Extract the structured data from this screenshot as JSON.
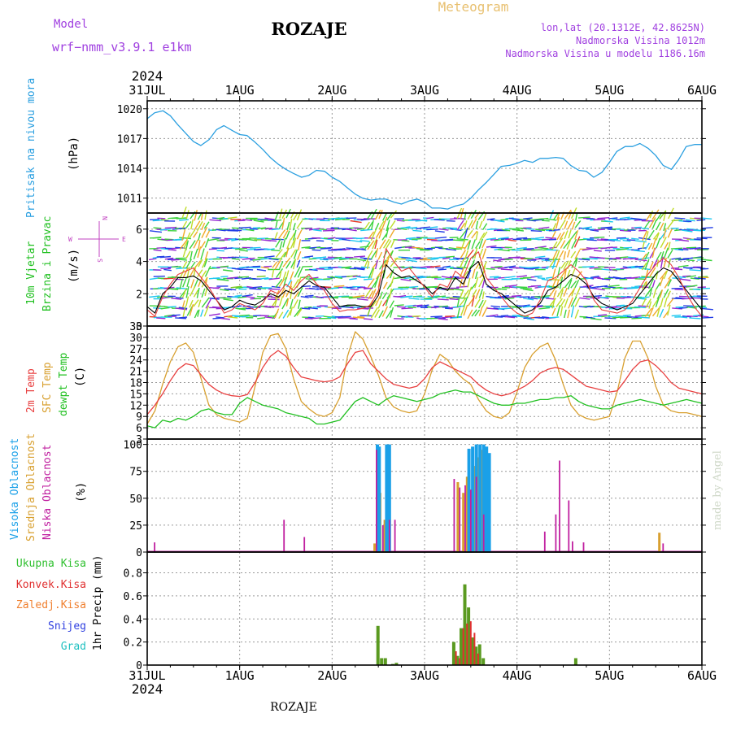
{
  "header": {
    "station": "ROZAJE",
    "model_label": "Model",
    "model_name": "wrf−nmm_v3.9.1  e1km",
    "product": "Meteogram",
    "lonlat": "lon,lat (20.1312E, 42.8625N)",
    "elevation": "Nadmorska Visina 1012m",
    "model_elevation": "Nadmorska Visina u modelu 1186.16m",
    "year_top": "2024",
    "year_bottom": "2024",
    "footer_station": "ROZAJE",
    "credit": "made by Angel"
  },
  "colors": {
    "pressure": "#2a9fe0",
    "wind_title": "#20c020",
    "temp2m": "#e84040",
    "sfc": "#d8a030",
    "dewpt": "#20c020",
    "cloud_high": "#1aa0e8",
    "cloud_mid": "#d8a030",
    "cloud_low": "#c020a0",
    "precip_total": "#5a9a20",
    "precip_conv": "#e03030",
    "precip_frozen": "#f08030",
    "snow": "#3040e0",
    "hail": "#20c0c0",
    "model_label": "#a040e0",
    "meta": "#a040e0",
    "meteogram": "#e8c070"
  },
  "chart_data": [
    {
      "type": "line",
      "panel": "pressure",
      "title": "Pritisak na nivou mora",
      "ylabel": "(hPa)",
      "ylim": [
        1009.5,
        1020.8
      ],
      "yticks": [
        "1011",
        "1014",
        "1017",
        "1020"
      ],
      "x_days": [
        "31JUL",
        "1AUG",
        "2AUG",
        "3AUG",
        "4AUG",
        "5AUG",
        "6AUG"
      ],
      "grid": true,
      "series": [
        {
          "x": [
            0,
            0.08,
            0.17,
            0.25,
            0.33,
            0.42,
            0.5,
            0.58,
            0.67,
            0.75,
            0.83,
            0.92,
            1.0,
            1.08,
            1.17,
            1.25,
            1.33,
            1.42,
            1.5,
            1.58,
            1.67,
            1.75,
            1.83,
            1.92,
            2.0,
            2.08,
            2.17,
            2.25,
            2.33,
            2.42,
            2.5,
            2.58,
            2.67,
            2.75,
            2.83,
            2.92,
            3.0,
            3.08,
            3.17,
            3.25,
            3.33,
            3.42,
            3.5,
            3.58,
            3.67,
            3.75,
            3.83,
            3.92,
            4.0,
            4.08,
            4.17,
            4.25,
            4.33,
            4.42,
            4.5,
            4.58,
            4.67,
            4.75,
            4.83,
            4.92,
            5.0,
            5.08,
            5.17,
            5.25,
            5.33,
            5.42,
            5.5,
            5.58,
            5.67,
            5.75,
            5.83,
            5.92,
            6.0
          ],
          "values": [
            1019.0,
            1019.6,
            1019.8,
            1019.3,
            1018.4,
            1017.5,
            1016.7,
            1016.3,
            1016.9,
            1017.9,
            1018.3,
            1017.8,
            1017.4,
            1017.3,
            1016.6,
            1015.9,
            1015.1,
            1014.4,
            1013.9,
            1013.5,
            1013.1,
            1013.3,
            1013.8,
            1013.7,
            1013.1,
            1012.7,
            1012.0,
            1011.4,
            1011.0,
            1010.8,
            1010.9,
            1010.9,
            1010.6,
            1010.4,
            1010.7,
            1010.9,
            1010.6,
            1010.0,
            1010.0,
            1009.9,
            1010.2,
            1010.4,
            1011.0,
            1011.8,
            1012.6,
            1013.4,
            1014.2,
            1014.3,
            1014.5,
            1014.8,
            1014.6,
            1015.0,
            1015.0,
            1015.1,
            1015.0,
            1014.3,
            1013.8,
            1013.7,
            1013.1,
            1013.6,
            1014.6,
            1015.7,
            1016.2,
            1016.2,
            1016.5,
            1016.0,
            1015.3,
            1014.3,
            1013.9,
            1014.9,
            1016.2,
            1016.4,
            1016.4
          ]
        }
      ]
    },
    {
      "type": "line",
      "panel": "wind",
      "title_line1": "10m Vjetar",
      "title_line2": "Brzina i Pravac",
      "ylabel": "(m/s)",
      "ylim": [
        0,
        7
      ],
      "yticks": [
        "0",
        "2",
        "4",
        "6"
      ],
      "compass": [
        "N",
        "E",
        "S",
        "W"
      ],
      "grid": true,
      "series": [
        {
          "values": [
            1.2,
            0.8,
            2.0,
            2.4,
            3.0,
            3.0,
            3.1,
            2.8,
            2.2,
            1.6,
            1.0,
            1.2,
            1.6,
            1.4,
            1.3,
            1.6,
            2.0,
            1.8,
            2.2,
            2.0,
            2.4,
            2.8,
            2.5,
            2.4,
            1.8,
            1.2,
            1.3,
            1.3,
            1.2,
            1.2,
            1.9,
            3.8,
            3.3,
            3.0,
            3.1,
            2.8,
            2.5,
            2.0,
            2.4,
            2.2,
            3.0,
            2.6,
            3.6,
            4.0,
            2.6,
            2.2,
            2.0,
            1.6,
            1.2,
            0.8,
            1.0,
            1.4,
            2.2,
            2.4,
            2.8,
            3.2,
            3.0,
            2.6,
            1.8,
            1.4,
            1.2,
            1.0,
            1.2,
            1.4,
            2.0,
            2.6,
            3.2,
            3.6,
            3.4,
            2.8,
            2.2,
            1.6,
            1.0
          ]
        },
        {
          "values": [
            1.0,
            0.6,
            1.8,
            2.6,
            3.2,
            3.4,
            3.6,
            3.0,
            2.4,
            1.6,
            0.8,
            1.0,
            1.4,
            1.2,
            1.0,
            1.4,
            2.2,
            2.0,
            2.6,
            2.2,
            2.8,
            3.2,
            2.6,
            2.2,
            1.4,
            0.9,
            1.0,
            1.0,
            1.1,
            1.3,
            2.2,
            4.8,
            4.0,
            3.4,
            3.6,
            3.0,
            2.4,
            1.8,
            2.6,
            2.4,
            3.4,
            3.0,
            4.2,
            4.6,
            3.0,
            2.4,
            1.8,
            1.2,
            0.8,
            0.6,
            0.8,
            1.6,
            2.8,
            3.0,
            3.4,
            3.8,
            3.4,
            2.8,
            1.6,
            1.0,
            0.9,
            0.8,
            1.0,
            1.6,
            2.4,
            3.2,
            3.8,
            4.2,
            3.8,
            3.0,
            2.0,
            1.2,
            0.6
          ]
        }
      ]
    },
    {
      "type": "line",
      "panel": "temperature",
      "title_lines": [
        "2m Temp",
        "SFC Temp",
        "dewpt Temp"
      ],
      "ylabel": "(C)",
      "ylim": [
        3,
        33
      ],
      "yticks": [
        "3",
        "6",
        "9",
        "12",
        "15",
        "18",
        "21",
        "24",
        "27",
        "30",
        "33"
      ],
      "grid": true,
      "series": [
        {
          "name": "2m Temp",
          "values": [
            9.5,
            12.0,
            15.0,
            18.5,
            21.5,
            23.0,
            22.5,
            20.0,
            17.5,
            16.0,
            15.0,
            14.5,
            14.3,
            14.8,
            18.0,
            22.0,
            25.0,
            26.5,
            25.0,
            22.0,
            19.5,
            19.0,
            18.5,
            18.2,
            18.5,
            19.5,
            23.0,
            26.0,
            26.5,
            23.0,
            21.0,
            19.0,
            17.5,
            17.0,
            16.5,
            17.0,
            19.0,
            22.0,
            23.5,
            22.5,
            21.5,
            20.5,
            19.5,
            17.5,
            16.0,
            15.0,
            14.5,
            15.0,
            16.0,
            17.0,
            18.5,
            20.5,
            21.5,
            22.0,
            21.5,
            20.0,
            18.5,
            17.0,
            16.5,
            16.0,
            15.5,
            15.8,
            18.5,
            21.5,
            23.5,
            24.0,
            22.5,
            20.5,
            18.0,
            16.5,
            16.0,
            15.5,
            15.0
          ]
        },
        {
          "name": "SFC Temp",
          "values": [
            7.0,
            10.5,
            17.5,
            23.5,
            27.5,
            28.5,
            26.0,
            19.0,
            12.0,
            9.5,
            8.5,
            8.0,
            7.5,
            8.5,
            17.0,
            26.0,
            30.5,
            31.0,
            27.0,
            19.0,
            13.0,
            11.0,
            9.5,
            9.0,
            10.0,
            14.0,
            25.0,
            31.5,
            29.5,
            25.0,
            20.0,
            14.0,
            11.5,
            10.5,
            10.0,
            10.5,
            15.0,
            21.5,
            25.5,
            24.0,
            21.0,
            19.0,
            17.5,
            13.5,
            10.5,
            9.0,
            8.5,
            10.0,
            15.5,
            22.0,
            25.5,
            27.5,
            28.5,
            24.0,
            17.5,
            12.0,
            9.5,
            8.5,
            8.0,
            8.5,
            9.0,
            15.5,
            24.5,
            29.0,
            29.0,
            24.5,
            17.0,
            12.0,
            10.5,
            10.0,
            10.0,
            9.5,
            9.0
          ]
        },
        {
          "name": "dewpt Temp",
          "values": [
            6.5,
            6.0,
            8.0,
            7.5,
            8.5,
            8.0,
            9.0,
            10.5,
            11.0,
            10.0,
            9.5,
            9.5,
            12.5,
            14.0,
            13.0,
            12.0,
            11.5,
            11.0,
            10.0,
            9.5,
            9.0,
            8.5,
            7.0,
            7.0,
            7.5,
            8.0,
            10.5,
            13.0,
            14.0,
            13.0,
            12.0,
            13.5,
            14.5,
            14.0,
            13.5,
            13.0,
            13.5,
            14.0,
            15.0,
            15.5,
            16.0,
            15.5,
            15.5,
            14.5,
            13.5,
            12.5,
            12.0,
            12.0,
            12.5,
            12.5,
            13.0,
            13.5,
            13.5,
            14.0,
            14.0,
            14.5,
            13.0,
            12.0,
            11.5,
            11.0,
            11.0,
            12.0,
            12.5,
            13.0,
            13.5,
            13.0,
            12.5,
            12.0,
            12.5,
            13.0,
            13.5,
            13.0,
            12.5
          ]
        }
      ]
    },
    {
      "type": "bar",
      "panel": "cloud",
      "title_lines": [
        "Visoka Oblacnost",
        "Srednja Oblacnost",
        "Niska Oblacnost"
      ],
      "ylabel": "(%)",
      "ylim": [
        0,
        105
      ],
      "yticks": [
        "0",
        "25",
        "50",
        "75",
        "100"
      ],
      "grid": true,
      "series": [
        {
          "name": "Visoka Oblacnost",
          "points": [
            [
              2.49,
              100
            ],
            [
              2.51,
              98
            ],
            [
              2.59,
              100
            ],
            [
              2.62,
              100
            ],
            [
              3.48,
              96
            ],
            [
              3.52,
              98
            ],
            [
              3.56,
              100
            ],
            [
              3.6,
              100
            ],
            [
              3.64,
              100
            ],
            [
              3.67,
              98
            ],
            [
              3.7,
              92
            ]
          ]
        },
        {
          "name": "Srednja Oblacnost",
          "points": [
            [
              2.46,
              8
            ],
            [
              2.52,
              55
            ],
            [
              2.57,
              30
            ],
            [
              2.6,
              48
            ],
            [
              3.36,
              65
            ],
            [
              3.42,
              55
            ],
            [
              3.46,
              70
            ],
            [
              3.54,
              80
            ],
            [
              3.58,
              88
            ],
            [
              3.62,
              95
            ],
            [
              3.66,
              60
            ],
            [
              5.54,
              18
            ]
          ]
        },
        {
          "name": "Niska Oblacnost",
          "points": [
            [
              0.08,
              9
            ],
            [
              1.48,
              30
            ],
            [
              1.7,
              14
            ],
            [
              2.48,
              95
            ],
            [
              2.55,
              25
            ],
            [
              2.62,
              30
            ],
            [
              2.68,
              30
            ],
            [
              3.32,
              68
            ],
            [
              3.38,
              60
            ],
            [
              3.44,
              62
            ],
            [
              3.5,
              58
            ],
            [
              3.56,
              70
            ],
            [
              3.64,
              35
            ],
            [
              4.3,
              19
            ],
            [
              4.42,
              35
            ],
            [
              4.46,
              85
            ],
            [
              4.56,
              48
            ],
            [
              4.6,
              10
            ],
            [
              4.72,
              9
            ],
            [
              5.58,
              8
            ]
          ]
        }
      ]
    },
    {
      "type": "bar",
      "panel": "precipitation",
      "title_lines": [
        "Ukupna Kisa",
        "Konvek.Kisa",
        "Zaledj.Kisa",
        "Snijeg",
        "Grad"
      ],
      "ylabel": "1hr Precip (mm)",
      "ylim": [
        0,
        0.98
      ],
      "yticks": [
        "0",
        "0.2",
        "0.4",
        "0.6",
        "0.8"
      ],
      "grid": true,
      "series": [
        {
          "name": "Ukupna Kisa",
          "points": [
            [
              2.5,
              0.34
            ],
            [
              2.54,
              0.06
            ],
            [
              2.58,
              0.06
            ],
            [
              2.66,
              0.01
            ],
            [
              2.7,
              0.02
            ],
            [
              3.32,
              0.2
            ],
            [
              3.36,
              0.08
            ],
            [
              3.4,
              0.32
            ],
            [
              3.44,
              0.7
            ],
            [
              3.48,
              0.5
            ],
            [
              3.52,
              0.24
            ],
            [
              3.56,
              0.16
            ],
            [
              3.6,
              0.18
            ],
            [
              3.64,
              0.06
            ],
            [
              4.64,
              0.06
            ]
          ]
        },
        {
          "name": "Konvek.Kisa",
          "points": [
            [
              3.34,
              0.12
            ],
            [
              3.38,
              0.06
            ],
            [
              3.42,
              0.32
            ],
            [
              3.46,
              0.36
            ],
            [
              3.5,
              0.38
            ],
            [
              3.54,
              0.28
            ],
            [
              3.58,
              0.1
            ]
          ]
        }
      ]
    }
  ]
}
